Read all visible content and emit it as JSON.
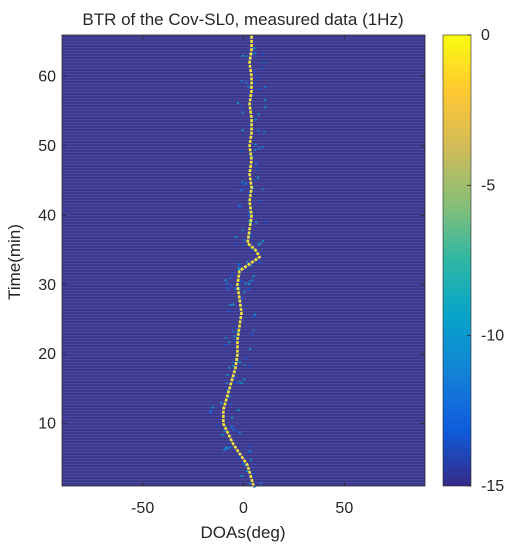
{
  "chart_data": {
    "type": "heatmap",
    "title": "BTR of the Cov-SL0, measured data (1Hz)",
    "xlabel": "DOAs(deg)",
    "ylabel": "Time(min)",
    "xlim": [
      -90,
      90
    ],
    "ylim": [
      1,
      66
    ],
    "xticks": [
      -50,
      0,
      50
    ],
    "yticks": [
      10,
      20,
      30,
      40,
      50,
      60
    ],
    "colorbar": {
      "min": -15,
      "max": 0,
      "ticks": [
        0,
        -5,
        -10,
        -15
      ],
      "colormap": "parula",
      "colors": [
        "#352a87",
        "#0f5cdd",
        "#1481d6",
        "#06a4ca",
        "#2eb7a4",
        "#87bf77",
        "#d1bb59",
        "#fec832",
        "#f9fb0e"
      ]
    },
    "background_level": -15,
    "background_color": "#3b3a8e",
    "ridge_color": "#f5e63a",
    "peak_track": {
      "time_min": [
        1,
        4,
        7,
        10,
        12,
        14,
        16,
        18,
        20,
        22,
        24,
        26,
        28,
        30,
        32,
        33,
        34,
        35,
        36,
        38,
        40,
        42,
        44,
        46,
        48,
        50,
        52,
        54,
        56,
        58,
        60,
        62,
        64,
        66
      ],
      "doa_deg": [
        5,
        2,
        -5,
        -10,
        -10,
        -8,
        -6,
        -4,
        -3,
        -3,
        -2,
        -1,
        -2,
        -3,
        -2,
        3,
        8,
        6,
        2,
        3,
        4,
        3,
        4,
        3,
        4,
        3,
        4,
        4,
        3,
        4,
        4,
        3,
        4,
        4
      ]
    }
  }
}
